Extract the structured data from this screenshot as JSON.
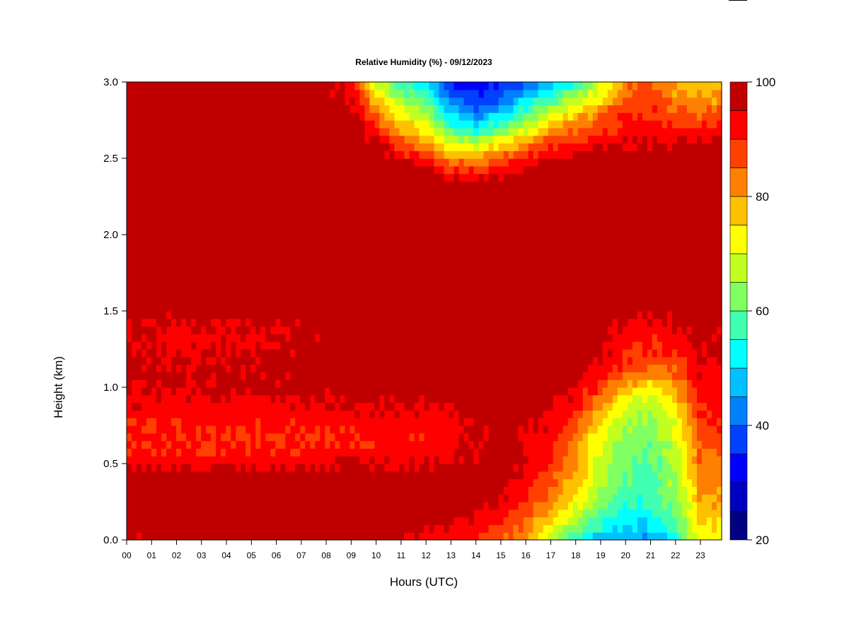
{
  "chart_data": {
    "type": "heatmap",
    "title": "Relative Humidity (%) - 09/12/2023",
    "xlabel": "Hours (UTC)",
    "ylabel": "Height (km)",
    "x_ticks": [
      "00",
      "01",
      "02",
      "03",
      "04",
      "05",
      "06",
      "07",
      "08",
      "09",
      "10",
      "11",
      "12",
      "13",
      "14",
      "15",
      "16",
      "17",
      "18",
      "19",
      "20",
      "21",
      "22",
      "23"
    ],
    "x_tick_values": [
      0,
      1,
      2,
      3,
      4,
      5,
      6,
      7,
      8,
      9,
      10,
      11,
      12,
      13,
      14,
      15,
      16,
      17,
      18,
      19,
      20,
      21,
      22,
      23
    ],
    "xlim": [
      0,
      23.85
    ],
    "y_ticks": [
      "0.0",
      "0.5",
      "1.0",
      "1.5",
      "2.0",
      "2.5",
      "3.0"
    ],
    "y_tick_values": [
      0.0,
      0.5,
      1.0,
      1.5,
      2.0,
      2.5,
      3.0
    ],
    "ylim": [
      0,
      3.0
    ],
    "colorbar": {
      "min": 20,
      "max": 100,
      "step": 5,
      "tick_labels": [
        "20",
        "40",
        "60",
        "80",
        "100"
      ],
      "tick_values": [
        20,
        40,
        60,
        80,
        100
      ],
      "colors": [
        "#000080",
        "#0000c0",
        "#0000ff",
        "#0040ff",
        "#0080ff",
        "#00c0ff",
        "#00ffff",
        "#40ffb0",
        "#80ff60",
        "#c0ff20",
        "#ffff00",
        "#ffc000",
        "#ff8000",
        "#ff4000",
        "#ff0000",
        "#c00000",
        "#800000"
      ]
    },
    "heights_km": [
      0.0,
      0.1,
      0.2,
      0.3,
      0.4,
      0.5,
      0.6,
      0.7,
      0.8,
      0.9,
      1.0,
      1.1,
      1.2,
      1.3,
      1.4,
      1.5,
      1.6,
      1.7,
      1.8,
      1.9,
      2.0,
      2.1,
      2.2,
      2.3,
      2.4,
      2.5,
      2.6,
      2.7,
      2.8,
      2.9,
      3.0
    ],
    "hours_utc": [
      0,
      1,
      2,
      3,
      4,
      5,
      6,
      7,
      8,
      9,
      10,
      11,
      12,
      13,
      14,
      15,
      16,
      17,
      18,
      19,
      20,
      21,
      22,
      23
    ],
    "values": [
      [
        94,
        96,
        97,
        97,
        97,
        98,
        97,
        97,
        97,
        96,
        96,
        95,
        94,
        92,
        90,
        86,
        78,
        66,
        55,
        48,
        45,
        45,
        52,
        72
      ],
      [
        99,
        99,
        99,
        99,
        99,
        99,
        99,
        99,
        99,
        99,
        99,
        99,
        97,
        95,
        93,
        90,
        84,
        74,
        64,
        55,
        50,
        50,
        58,
        75
      ],
      [
        99,
        99,
        99,
        99,
        99,
        99,
        99,
        99,
        99,
        99,
        99,
        99,
        98,
        97,
        96,
        94,
        88,
        80,
        70,
        60,
        55,
        55,
        62,
        78
      ],
      [
        99,
        99,
        99,
        99,
        99,
        99,
        99,
        99,
        99,
        99,
        99,
        99,
        98,
        98,
        97,
        96,
        92,
        84,
        75,
        64,
        58,
        57,
        64,
        80
      ],
      [
        98,
        98,
        99,
        99,
        99,
        98,
        98,
        99,
        99,
        98,
        98,
        98,
        98,
        98,
        98,
        97,
        94,
        87,
        78,
        66,
        60,
        58,
        66,
        82
      ],
      [
        93,
        93,
        94,
        93,
        93,
        93,
        93,
        93,
        94,
        95,
        95,
        95,
        95,
        96,
        97,
        97,
        95,
        90,
        80,
        68,
        60,
        58,
        66,
        84
      ],
      [
        90,
        90,
        91,
        90,
        90,
        90,
        90,
        90,
        91,
        91,
        91,
        91,
        92,
        94,
        96,
        97,
        96,
        92,
        82,
        70,
        62,
        60,
        68,
        86
      ],
      [
        90,
        90,
        90,
        90,
        90,
        90,
        90,
        90,
        90,
        91,
        91,
        91,
        92,
        93,
        96,
        97,
        96,
        93,
        84,
        72,
        64,
        62,
        70,
        88
      ],
      [
        92,
        92,
        92,
        92,
        92,
        92,
        92,
        92,
        92,
        93,
        93,
        93,
        93,
        94,
        97,
        98,
        97,
        94,
        88,
        76,
        66,
        64,
        72,
        90
      ],
      [
        94,
        94,
        94,
        94,
        94,
        94,
        94,
        95,
        95,
        96,
        96,
        96,
        96,
        97,
        99,
        99,
        98,
        96,
        92,
        82,
        70,
        68,
        76,
        92
      ],
      [
        95,
        95,
        95,
        95,
        96,
        96,
        96,
        97,
        97,
        98,
        98,
        98,
        98,
        98,
        99,
        99,
        99,
        98,
        95,
        88,
        78,
        74,
        80,
        93
      ],
      [
        96,
        96,
        96,
        96,
        96,
        96,
        96,
        97,
        98,
        99,
        99,
        99,
        99,
        99,
        99,
        99,
        99,
        99,
        97,
        93,
        86,
        82,
        86,
        94
      ],
      [
        96,
        95,
        95,
        95,
        95,
        96,
        96,
        97,
        98,
        99,
        99,
        99,
        99,
        99,
        99,
        99,
        99,
        99,
        98,
        95,
        90,
        88,
        90,
        95
      ],
      [
        94,
        94,
        93,
        93,
        94,
        94,
        94,
        95,
        97,
        99,
        99,
        99,
        99,
        99,
        99,
        99,
        99,
        99,
        99,
        97,
        92,
        91,
        93,
        96
      ],
      [
        96,
        95,
        95,
        95,
        95,
        95,
        95,
        96,
        97,
        99,
        99,
        99,
        99,
        99,
        99,
        99,
        99,
        99,
        99,
        98,
        94,
        93,
        95,
        97
      ],
      [
        97,
        97,
        97,
        97,
        97,
        97,
        97,
        97,
        98,
        99,
        99,
        99,
        99,
        99,
        99,
        99,
        99,
        99,
        99,
        99,
        97,
        96,
        97,
        98
      ],
      [
        98,
        98,
        98,
        98,
        98,
        98,
        98,
        98,
        99,
        99,
        99,
        99,
        99,
        99,
        99,
        99,
        99,
        99,
        99,
        99,
        99,
        99,
        99,
        99
      ],
      [
        98,
        99,
        99,
        99,
        99,
        99,
        99,
        99,
        99,
        99,
        99,
        99,
        99,
        99,
        99,
        99,
        99,
        99,
        99,
        99,
        99,
        99,
        99,
        99
      ],
      [
        99,
        99,
        99,
        99,
        99,
        99,
        99,
        99,
        99,
        99,
        99,
        99,
        99,
        99,
        99,
        99,
        99,
        99,
        99,
        99,
        99,
        99,
        99,
        99
      ],
      [
        99,
        99,
        99,
        99,
        99,
        99,
        99,
        99,
        99,
        99,
        99,
        99,
        99,
        99,
        99,
        99,
        99,
        99,
        99,
        99,
        99,
        99,
        99,
        99
      ],
      [
        99,
        99,
        99,
        99,
        99,
        99,
        99,
        99,
        99,
        99,
        99,
        99,
        99,
        99,
        99,
        99,
        99,
        99,
        99,
        99,
        99,
        99,
        99,
        99
      ],
      [
        99,
        99,
        99,
        99,
        99,
        99,
        99,
        99,
        99,
        99,
        99,
        99,
        99,
        99,
        99,
        99,
        99,
        99,
        99,
        99,
        99,
        99,
        99,
        99
      ],
      [
        99,
        99,
        99,
        99,
        99,
        99,
        99,
        99,
        99,
        99,
        99,
        99,
        99,
        99,
        99,
        99,
        99,
        99,
        99,
        99,
        99,
        99,
        99,
        99
      ],
      [
        99,
        99,
        99,
        99,
        99,
        99,
        99,
        99,
        99,
        99,
        99,
        99,
        99,
        98,
        98,
        99,
        99,
        99,
        99,
        99,
        99,
        99,
        99,
        99
      ],
      [
        99,
        99,
        99,
        99,
        99,
        99,
        99,
        99,
        99,
        99,
        99,
        99,
        98,
        93,
        92,
        95,
        97,
        99,
        99,
        99,
        99,
        99,
        99,
        99
      ],
      [
        99,
        99,
        99,
        99,
        99,
        99,
        99,
        99,
        99,
        99,
        99,
        95,
        90,
        82,
        80,
        86,
        92,
        96,
        97,
        98,
        98,
        98,
        99,
        99
      ],
      [
        99,
        99,
        99,
        99,
        99,
        99,
        99,
        99,
        99,
        99,
        96,
        86,
        80,
        70,
        65,
        74,
        82,
        88,
        92,
        95,
        96,
        96,
        96,
        97
      ],
      [
        99,
        99,
        99,
        99,
        99,
        99,
        99,
        99,
        99,
        99,
        90,
        78,
        72,
        58,
        52,
        60,
        68,
        78,
        84,
        88,
        92,
        92,
        90,
        90
      ],
      [
        99,
        99,
        99,
        99,
        99,
        99,
        99,
        99,
        98,
        97,
        84,
        72,
        66,
        48,
        42,
        50,
        58,
        68,
        76,
        82,
        90,
        90,
        86,
        85
      ],
      [
        99,
        99,
        99,
        99,
        99,
        99,
        99,
        99,
        97,
        95,
        76,
        64,
        58,
        40,
        36,
        40,
        48,
        56,
        64,
        74,
        86,
        88,
        82,
        80
      ],
      [
        99,
        99,
        99,
        99,
        99,
        99,
        99,
        99,
        96,
        92,
        68,
        56,
        50,
        34,
        30,
        34,
        40,
        48,
        56,
        68,
        82,
        86,
        78,
        76
      ]
    ]
  }
}
